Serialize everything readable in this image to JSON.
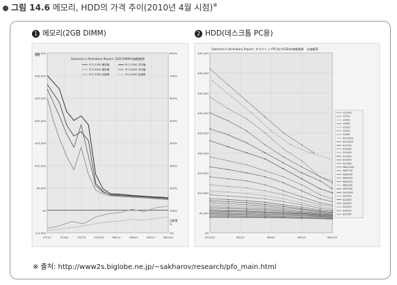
{
  "figure": {
    "number": "그림 14.6",
    "title": "메모리, HDD의 가격 추이",
    "subtitle": "(2010년 4월 시점)",
    "note_mark": "※"
  },
  "source": "※ 출처: http://www2s.biglobe.ne.jp/~sakharov/research/pfo_main.html",
  "chart_data": [
    {
      "type": "line",
      "panel_number": "1",
      "panel_label": "메모리(2GB DIMM)",
      "title": "Sakharov's Akihabara Report: 2GB DIMMの価格推移",
      "y_unit_label": "価格",
      "y2_label": "比較値",
      "y2_label_unit": "%",
      "yticks": [
        "¥35,000",
        "¥30,000",
        "¥25,000",
        "¥20,000",
        "¥15,000",
        "¥10,000",
        "¥5,000",
        "¥0",
        "¥-5,000"
      ],
      "y2ticks": [
        "800%",
        "700%",
        "600%",
        "500%",
        "400%",
        "300%",
        "200%",
        "100%",
        "0%"
      ],
      "xticks": [
        "07/1/1",
        "07/4/1",
        "07/7/1",
        "07/10/1",
        "08/1/1",
        "08/4/1",
        "08/7/1",
        "08/10/1"
      ],
      "ylim": [
        -5000,
        35000
      ],
      "legend": [
        "PC2-5300 最安値",
        "PC2-5300 平均値",
        "PC2-6400 最安値",
        "PC2-6400 平均値",
        "PC2-5300 比価率",
        "PC2-6400 比価率"
      ],
      "series": [
        {
          "name": "PC2-5300 平均値",
          "color": "#222222",
          "x": [
            0,
            5,
            10,
            16,
            22,
            28,
            34,
            40,
            46,
            52,
            58,
            64,
            70,
            76,
            82,
            88,
            94,
            100
          ],
          "values": [
            30000,
            28500,
            27000,
            22000,
            20000,
            21000,
            19000,
            8000,
            4800,
            3700,
            3600,
            3500,
            3300,
            3200,
            3100,
            3000,
            2900,
            2800
          ]
        },
        {
          "name": "PC2-5300 最安値",
          "color": "#444444",
          "x": [
            0,
            5,
            10,
            16,
            22,
            28,
            34,
            40,
            46,
            52,
            58,
            64,
            70,
            76,
            82,
            88,
            94,
            100
          ],
          "values": [
            28000,
            26000,
            24000,
            19000,
            16500,
            17500,
            15500,
            6000,
            4200,
            3400,
            3300,
            3200,
            3100,
            3000,
            2900,
            2800,
            2600,
            2500
          ]
        },
        {
          "name": "PC2-6400 平均値",
          "color": "#666666",
          "x": [
            0,
            5,
            10,
            16,
            22,
            28,
            34,
            40,
            46,
            52,
            58,
            64,
            70,
            76,
            82,
            88,
            94,
            100
          ],
          "values": [
            27000,
            24000,
            21000,
            17000,
            14000,
            19000,
            12000,
            5500,
            4000,
            3500,
            3400,
            3300,
            3200,
            3100,
            3000,
            2900,
            2800,
            2700
          ]
        },
        {
          "name": "PC2-6400 最安値",
          "color": "#888888",
          "x": [
            0,
            5,
            10,
            16,
            22,
            28,
            34,
            40,
            46,
            52,
            58,
            64,
            70,
            76,
            82,
            88,
            94,
            100
          ],
          "values": [
            25000,
            20000,
            16000,
            12000,
            9000,
            14000,
            8000,
            4500,
            3600,
            3200,
            3100,
            3000,
            2900,
            2800,
            2700,
            2600,
            2500,
            2400
          ]
        },
        {
          "name": "PC2-5300 比価率",
          "color": "#9a9a9a",
          "x": [
            0,
            10,
            20,
            30,
            40,
            50,
            60,
            70,
            80,
            90,
            100
          ],
          "values": [
            -4000,
            -3500,
            -2500,
            -3000,
            -1500,
            -800,
            -500,
            200,
            -300,
            600,
            900
          ]
        },
        {
          "name": "PC2-6400 比価率",
          "color": "#bbbbbb",
          "x": [
            0,
            10,
            20,
            30,
            40,
            50,
            60,
            70,
            80,
            90,
            100
          ],
          "values": [
            -4500,
            -4200,
            -3800,
            -3500,
            -3000,
            -2600,
            -2400,
            -2000,
            -2200,
            -1800,
            -1500
          ]
        }
      ]
    },
    {
      "type": "line",
      "panel_number": "2",
      "panel_label": "HDD(데스크톱 PC용)",
      "title": "Sakharov's Akihabara Report: デスクトップPC向けHDDの価格推移　全価格帯",
      "yticks": [
        "¥45,000",
        "¥40,000",
        "¥35,000",
        "¥30,000",
        "¥25,000",
        "¥20,000",
        "¥15,000",
        "¥10,000",
        "¥5,000",
        "¥0"
      ],
      "xticks": [
        "07/10/1",
        "08/1/1",
        "08/4/1",
        "08/7/1",
        "08/10/1"
      ],
      "ylim": [
        0,
        45000
      ],
      "legend": [
        "U/1500",
        "U/750",
        "U/500",
        "U/400",
        "U/320",
        "U/250",
        "U/160",
        "SU/1500",
        "SU/1000",
        "SU/750",
        "SU/500",
        "SU/400",
        "SU/320",
        "SU/250",
        "SU/160",
        "WD/1000",
        "WD/750",
        "WD/500",
        "WD/400",
        "WD/320",
        "WD/250",
        "WD/160",
        "SA/1000",
        "SA/750",
        "SA/500",
        "SA/400",
        "SA/320",
        "SA/250",
        "SA/160"
      ],
      "series": [
        {
          "name": "U/1500",
          "color": "#888888",
          "x": [
            0,
            15,
            30,
            45,
            60,
            75,
            85
          ],
          "values": [
            41000,
            37000,
            33000,
            29000,
            25000,
            22000,
            20000
          ]
        },
        {
          "name": "SU/1500",
          "color": "#aaaaaa",
          "x": [
            2,
            18,
            34,
            50,
            66,
            82,
            98
          ],
          "values": [
            38000,
            34000,
            30000,
            25500,
            22000,
            20000,
            18500
          ]
        },
        {
          "name": "U/1000",
          "color": "#999999",
          "x": [
            0,
            15,
            30,
            45,
            60,
            75,
            90,
            100
          ],
          "values": [
            34000,
            31000,
            28500,
            25000,
            21000,
            18000,
            14000,
            13000
          ]
        },
        {
          "name": "SU/1000",
          "color": "#777777",
          "x": [
            0,
            15,
            30,
            45,
            60,
            75,
            90,
            100
          ],
          "values": [
            30000,
            28000,
            25500,
            22000,
            19000,
            16500,
            14000,
            12500
          ]
        },
        {
          "name": "WD/1000",
          "color": "#666666",
          "x": [
            0,
            15,
            30,
            45,
            60,
            75,
            90,
            100
          ],
          "values": [
            26000,
            24500,
            22500,
            20000,
            17500,
            15000,
            13000,
            11000
          ]
        },
        {
          "name": "SA/1000",
          "color": "#555555",
          "x": [
            0,
            15,
            30,
            45,
            60,
            75,
            90,
            100
          ],
          "values": [
            23000,
            21500,
            20000,
            18500,
            16000,
            13500,
            11000,
            10000
          ]
        },
        {
          "name": "U/750",
          "color": "#8a8a8a",
          "x": [
            0,
            15,
            30,
            45,
            60,
            75,
            90,
            100
          ],
          "values": [
            19000,
            18000,
            17000,
            15500,
            14000,
            12000,
            9500,
            8500
          ]
        },
        {
          "name": "SU/750",
          "color": "#6a6a6a",
          "x": [
            0,
            15,
            30,
            45,
            60,
            75,
            90,
            100
          ],
          "values": [
            16500,
            15800,
            15000,
            14000,
            12500,
            10500,
            8500,
            7800
          ]
        },
        {
          "name": "WD/750",
          "color": "#777777",
          "x": [
            0,
            15,
            30,
            45,
            60,
            75,
            90,
            100
          ],
          "values": [
            14000,
            13500,
            13000,
            12000,
            10500,
            9000,
            7500,
            6900
          ]
        },
        {
          "name": "SA/750",
          "color": "#999999",
          "x": [
            0,
            15,
            30,
            45,
            60,
            75,
            90,
            100
          ],
          "values": [
            12000,
            11600,
            11200,
            10500,
            9500,
            8200,
            7000,
            6500
          ]
        },
        {
          "name": "U/500",
          "color": "#aaaaaa",
          "x": [
            0,
            15,
            30,
            45,
            60,
            75,
            90,
            100
          ],
          "values": [
            10500,
            10200,
            9800,
            9300,
            8500,
            7500,
            6500,
            6000
          ]
        },
        {
          "name": "SU/500",
          "color": "#888888",
          "x": [
            0,
            15,
            30,
            45,
            60,
            75,
            90,
            100
          ],
          "values": [
            9500,
            9200,
            8900,
            8500,
            7800,
            7000,
            6100,
            5700
          ]
        },
        {
          "name": "WD/500",
          "color": "#666666",
          "x": [
            0,
            15,
            30,
            45,
            60,
            75,
            90,
            100
          ],
          "values": [
            8500,
            8300,
            8000,
            7600,
            7000,
            6400,
            5700,
            5400
          ]
        },
        {
          "name": "SA/500",
          "color": "#555555",
          "x": [
            0,
            15,
            30,
            45,
            60,
            75,
            90,
            100
          ],
          "values": [
            8000,
            7800,
            7500,
            7100,
            6600,
            6000,
            5400,
            5100
          ]
        },
        {
          "name": "U/400",
          "color": "#777777",
          "x": [
            0,
            15,
            30,
            45,
            60,
            75,
            90,
            100
          ],
          "values": [
            7500,
            7300,
            7000,
            6700,
            6200,
            5800,
            5200,
            4900
          ]
        },
        {
          "name": "SU/400",
          "color": "#999999",
          "x": [
            0,
            15,
            30,
            45,
            60,
            75,
            90,
            100
          ],
          "values": [
            7000,
            6800,
            6600,
            6300,
            5900,
            5500,
            5000,
            4700
          ]
        },
        {
          "name": "WD/400",
          "color": "#888888",
          "x": [
            0,
            15,
            30,
            45,
            60,
            75,
            90,
            100
          ],
          "values": [
            6600,
            6400,
            6200,
            6000,
            5700,
            5300,
            4900,
            4600
          ]
        },
        {
          "name": "SA/400",
          "color": "#666666",
          "x": [
            0,
            15,
            30,
            45,
            60,
            75,
            90,
            100
          ],
          "values": [
            6200,
            6100,
            5900,
            5700,
            5400,
            5100,
            4700,
            4500
          ]
        },
        {
          "name": "U/320",
          "color": "#aaaaaa",
          "x": [
            0,
            15,
            30,
            45,
            60,
            75,
            90,
            100
          ],
          "values": [
            5900,
            5800,
            5600,
            5400,
            5200,
            4900,
            4600,
            4400
          ]
        },
        {
          "name": "SU/320",
          "color": "#555555",
          "x": [
            0,
            15,
            30,
            45,
            60,
            75,
            90,
            100
          ],
          "values": [
            5600,
            5500,
            5400,
            5200,
            5000,
            4800,
            4500,
            4300
          ]
        },
        {
          "name": "WD/320",
          "color": "#777777",
          "x": [
            0,
            15,
            30,
            45,
            60,
            75,
            90,
            100
          ],
          "values": [
            5400,
            5300,
            5200,
            5000,
            4900,
            4700,
            4400,
            4200
          ]
        },
        {
          "name": "SA/320",
          "color": "#999999",
          "x": [
            0,
            15,
            30,
            45,
            60,
            75,
            90,
            100
          ],
          "values": [
            5200,
            5100,
            5000,
            4900,
            4700,
            4600,
            4300,
            4100
          ]
        },
        {
          "name": "U/250",
          "color": "#888888",
          "x": [
            0,
            15,
            30,
            45,
            60,
            75,
            90,
            100
          ],
          "values": [
            5000,
            4900,
            4800,
            4700,
            4600,
            4400,
            4200,
            4000
          ]
        },
        {
          "name": "SU/250",
          "color": "#666666",
          "x": [
            0,
            15,
            30,
            45,
            60,
            75,
            90,
            100
          ],
          "values": [
            4800,
            4700,
            4600,
            4500,
            4400,
            4300,
            4100,
            3900
          ]
        },
        {
          "name": "WD/250",
          "color": "#aaaaaa",
          "x": [
            0,
            15,
            30,
            45,
            60,
            75,
            90,
            100
          ],
          "values": [
            4600,
            4500,
            4500,
            4400,
            4300,
            4200,
            4000,
            3800
          ]
        },
        {
          "name": "SA/250",
          "color": "#777777",
          "x": [
            0,
            15,
            30,
            45,
            60,
            75,
            90,
            100
          ],
          "values": [
            4400,
            4400,
            4300,
            4200,
            4100,
            4000,
            3900,
            3700
          ]
        },
        {
          "name": "U/160",
          "color": "#999999",
          "x": [
            0,
            15,
            30,
            45,
            60,
            75,
            90,
            100
          ],
          "values": [
            4200,
            4200,
            4100,
            4000,
            3900,
            3800,
            3700,
            3600
          ]
        },
        {
          "name": "WD/160",
          "color": "#555555",
          "x": [
            0,
            15,
            30,
            45,
            60,
            75,
            90,
            100
          ],
          "values": [
            4000,
            4000,
            3900,
            3900,
            3800,
            3700,
            3600,
            3500
          ]
        },
        {
          "name": "SA/160",
          "color": "#888888",
          "x": [
            0,
            15,
            30,
            45,
            60,
            75,
            90,
            100
          ],
          "values": [
            3800,
            3800,
            3800,
            3700,
            3700,
            3600,
            3500,
            3400
          ]
        }
      ]
    }
  ]
}
